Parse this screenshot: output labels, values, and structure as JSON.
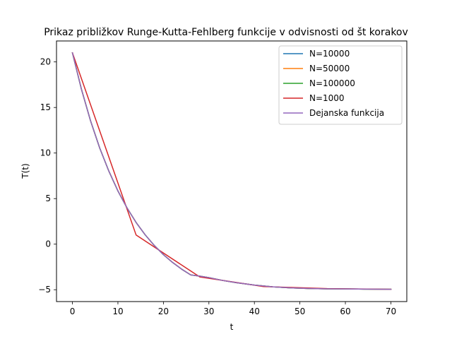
{
  "chart_data": {
    "type": "line",
    "title": "Prikaz približkov Runge-Kutta-Fehlberg funkcije v odvisnosti od št korakov",
    "xlabel": "t",
    "ylabel": "T(t)",
    "xlim": [
      -3.5,
      73.5
    ],
    "ylim": [
      -6.3,
      22.3
    ],
    "xticks": [
      0,
      10,
      20,
      30,
      40,
      50,
      60,
      70
    ],
    "yticks": [
      -5,
      0,
      5,
      10,
      15,
      20
    ],
    "legend_position": "top-right",
    "grid": false,
    "series": [
      {
        "name": "N=10000",
        "color": "#1f77b4",
        "x": [
          0,
          2,
          4,
          6,
          8,
          10,
          12,
          14,
          16,
          18,
          20,
          22,
          24,
          26,
          28,
          30,
          33,
          36,
          40,
          44,
          48,
          52,
          56,
          60,
          64,
          70
        ],
        "y": [
          21,
          16.97,
          13.51,
          10.55,
          8.02,
          5.84,
          3.98,
          2.38,
          1.02,
          -0.15,
          -1.15,
          -2.0,
          -2.74,
          -3.37,
          -3.51,
          -3.67,
          -3.98,
          -4.23,
          -4.49,
          -4.68,
          -4.8,
          -4.87,
          -4.9,
          -4.91,
          -4.93,
          -4.95
        ]
      },
      {
        "name": "N=50000",
        "color": "#ff7f0e",
        "x": [
          0,
          2,
          4,
          6,
          8,
          10,
          12,
          14,
          16,
          18,
          20,
          22,
          24,
          26,
          28,
          30,
          33,
          36,
          40,
          44,
          48,
          52,
          56,
          60,
          64,
          70
        ],
        "y": [
          21,
          16.97,
          13.51,
          10.55,
          8.02,
          5.84,
          3.98,
          2.38,
          1.02,
          -0.15,
          -1.15,
          -2.0,
          -2.74,
          -3.37,
          -3.51,
          -3.67,
          -3.98,
          -4.23,
          -4.49,
          -4.68,
          -4.8,
          -4.87,
          -4.9,
          -4.91,
          -4.93,
          -4.95
        ]
      },
      {
        "name": "N=100000",
        "color": "#2ca02c",
        "x": [
          0,
          2,
          4,
          6,
          8,
          10,
          12,
          14,
          16,
          18,
          20,
          22,
          24,
          26,
          28,
          30,
          33,
          36,
          40,
          44,
          48,
          52,
          56,
          60,
          64,
          70
        ],
        "y": [
          21,
          16.97,
          13.51,
          10.55,
          8.02,
          5.84,
          3.98,
          2.38,
          1.02,
          -0.15,
          -1.15,
          -2.0,
          -2.74,
          -3.37,
          -3.51,
          -3.67,
          -3.98,
          -4.23,
          -4.49,
          -4.68,
          -4.8,
          -4.87,
          -4.9,
          -4.91,
          -4.93,
          -4.95
        ]
      },
      {
        "name": "N=1000",
        "color": "#d62728",
        "x": [
          0,
          14,
          28,
          42,
          56,
          70
        ],
        "y": [
          21,
          1.0,
          -3.6,
          -4.65,
          -4.88,
          -4.95
        ]
      },
      {
        "name": "Dejanska funkcija",
        "color": "#9467bd",
        "x": [
          0,
          2,
          4,
          6,
          8,
          10,
          12,
          14,
          16,
          18,
          20,
          22,
          24,
          26,
          28,
          30,
          33,
          36,
          40,
          44,
          48,
          52,
          56,
          60,
          64,
          70
        ],
        "y": [
          21,
          16.97,
          13.51,
          10.55,
          8.02,
          5.84,
          3.98,
          2.38,
          1.02,
          -0.15,
          -1.15,
          -2.0,
          -2.74,
          -3.37,
          -3.51,
          -3.67,
          -3.98,
          -4.23,
          -4.49,
          -4.68,
          -4.8,
          -4.87,
          -4.9,
          -4.91,
          -4.93,
          -4.95
        ]
      }
    ]
  }
}
